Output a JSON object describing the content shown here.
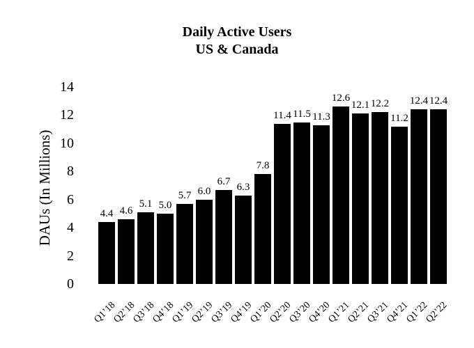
{
  "figure": {
    "background": "#ffffff",
    "text_color": "#000000"
  },
  "chart_data": {
    "type": "bar",
    "title": "Daily Active Users",
    "subtitle": "US & Canada",
    "title_lines": [
      "Daily Active Users",
      "US & Canada"
    ],
    "ylabel": "DAUs (In Millions)",
    "xlabel": "",
    "categories": [
      "Q1’18",
      "Q2’18",
      "Q3’18",
      "Q4’18",
      "Q1’19",
      "Q2’19",
      "Q3’19",
      "Q4’19",
      "Q1’20",
      "Q2’20",
      "Q3’20",
      "Q4’20",
      "Q1’21",
      "Q2’21",
      "Q3’21",
      "Q4’21",
      "Q1’22",
      "Q2’22"
    ],
    "values": [
      4.4,
      4.6,
      5.1,
      5.0,
      5.7,
      6.0,
      6.7,
      6.3,
      7.8,
      11.4,
      11.5,
      11.3,
      12.6,
      12.1,
      12.2,
      11.2,
      12.4,
      12.4
    ],
    "value_labels": [
      "4.4",
      "4.6",
      "5.1",
      "5.0",
      "5.7",
      "6.0",
      "6.7",
      "6.3",
      "7.8",
      "11.4",
      "11.5",
      "11.3",
      "12.6",
      "12.1",
      "12.2",
      "11.2",
      "12.4",
      "12.4"
    ],
    "yticks": [
      0,
      2,
      4,
      6,
      8,
      10,
      12,
      14
    ],
    "ylim": [
      0,
      14
    ],
    "bar_color": "#000000",
    "grid": false,
    "legend": false,
    "axis_lines": false
  }
}
